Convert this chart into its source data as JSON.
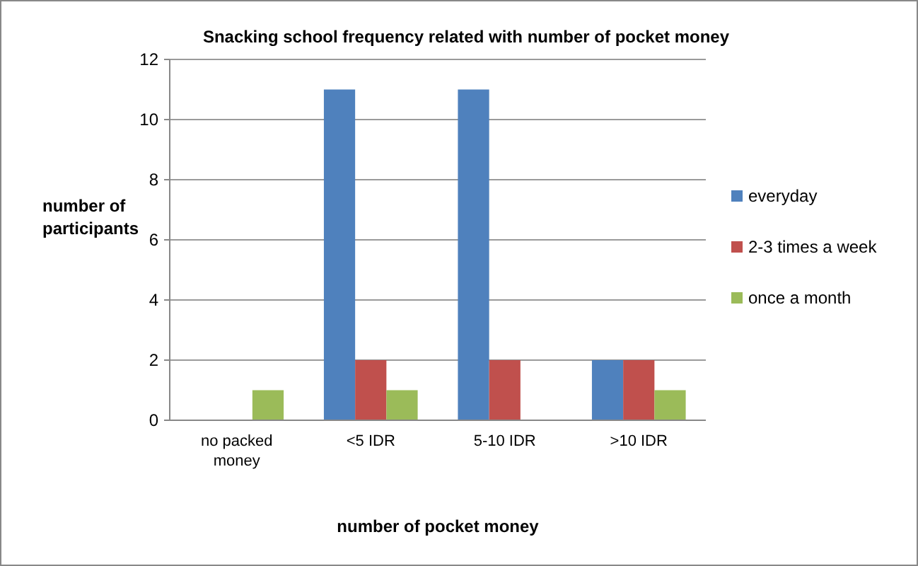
{
  "chart_data": {
    "type": "bar",
    "title": "Snacking school frequency related with number of pocket money",
    "xlabel": "number of pocket money",
    "ylabel": "number of participants",
    "categories": [
      "no packed money",
      "<5 IDR",
      "5-10 IDR",
      ">10 IDR"
    ],
    "series": [
      {
        "name": "everyday",
        "color": "#4f81bd",
        "values": [
          0,
          11,
          11,
          2
        ]
      },
      {
        "name": "2-3 times a week",
        "color": "#c0504d",
        "values": [
          0,
          2,
          2,
          2
        ]
      },
      {
        "name": "once a month",
        "color": "#9bbb59",
        "values": [
          1,
          1,
          0,
          1
        ]
      }
    ],
    "ylim": [
      0,
      12
    ],
    "yticks": [
      0,
      2,
      4,
      6,
      8,
      10,
      12
    ],
    "grid": "y",
    "legend": "right"
  }
}
